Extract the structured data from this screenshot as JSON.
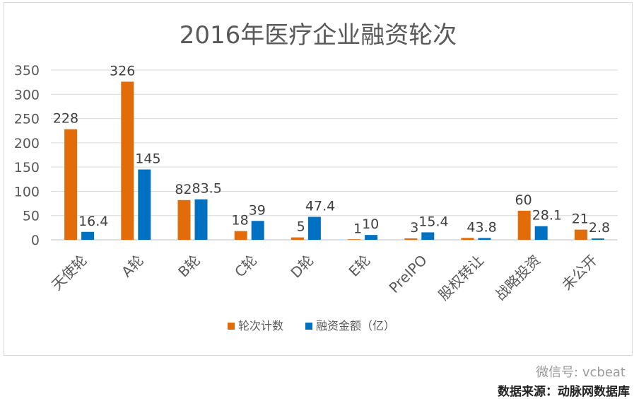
{
  "chart_data": {
    "type": "bar",
    "title": "2016年医疗企业融资轮次",
    "categories": [
      "天使轮",
      "A轮",
      "B轮",
      "C轮",
      "D轮",
      "E轮",
      "PreIPO",
      "股权转让",
      "战略投资",
      "未公开"
    ],
    "series": [
      {
        "name": "轮次计数",
        "color": "#e36c0a",
        "values": [
          228,
          326,
          82,
          18,
          5,
          1,
          3,
          4,
          60,
          21
        ],
        "labels": [
          "228",
          "326",
          "82",
          "18",
          "5",
          "1",
          "3",
          "4",
          "60",
          "21"
        ]
      },
      {
        "name": "融资金额（亿）",
        "color": "#0070c0",
        "values": [
          16.4,
          145,
          83.5,
          39,
          47.4,
          10,
          15.4,
          3.8,
          28.1,
          2.8
        ],
        "labels": [
          "16.4",
          "145",
          "83.5",
          "39",
          "47.4",
          "10",
          "15.4",
          "3.8",
          "28.1",
          "2.8"
        ]
      }
    ],
    "ylim": [
      0,
      350
    ],
    "yticks": [
      "0",
      "50",
      "100",
      "150",
      "200",
      "250",
      "300",
      "350"
    ],
    "grid": true,
    "legend": "bottom"
  },
  "watermark": "微信号: vcbeat",
  "source_note": "数据来源：动脉网数据库"
}
